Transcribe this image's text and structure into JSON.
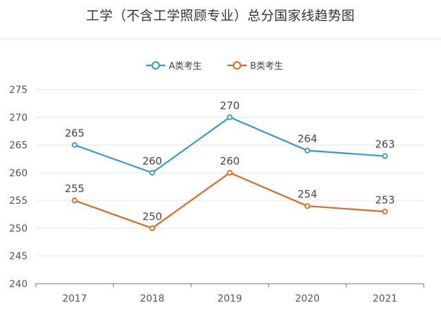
{
  "chart_data": {
    "type": "line",
    "title": "工学（不含工学照顾专业）总分国家线趋势图",
    "categories": [
      "2017",
      "2018",
      "2019",
      "2020",
      "2021"
    ],
    "series": [
      {
        "name": "A类考生",
        "color": "#2d97d9",
        "values": [
          265,
          260,
          270,
          264,
          263
        ]
      },
      {
        "name": "B类考生",
        "color": "#e0671a",
        "values": [
          255,
          250,
          260,
          254,
          253
        ]
      }
    ],
    "ylim": [
      240,
      275
    ],
    "yticks": [
      240,
      245,
      250,
      255,
      260,
      265,
      270,
      275
    ],
    "grid": true,
    "legend": "top-center",
    "xlabel": "",
    "ylabel": ""
  }
}
